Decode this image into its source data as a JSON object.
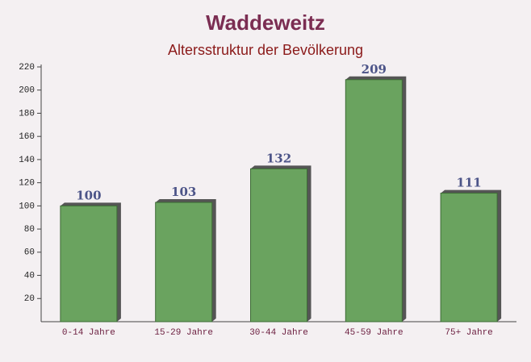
{
  "chart_data": {
    "type": "bar",
    "title": "Waddeweitz",
    "subtitle": "Altersstruktur der Bevölkerung",
    "categories": [
      "0-14 Jahre",
      "15-29 Jahre",
      "30-44 Jahre",
      "45-59 Jahre",
      "75+ Jahre"
    ],
    "values": [
      100,
      103,
      132,
      209,
      111
    ],
    "color": "#6aa35f",
    "ylim": [
      0,
      220
    ],
    "yticks": [
      20,
      40,
      60,
      80,
      100,
      120,
      140,
      160,
      180,
      200,
      220
    ],
    "grid": false
  }
}
